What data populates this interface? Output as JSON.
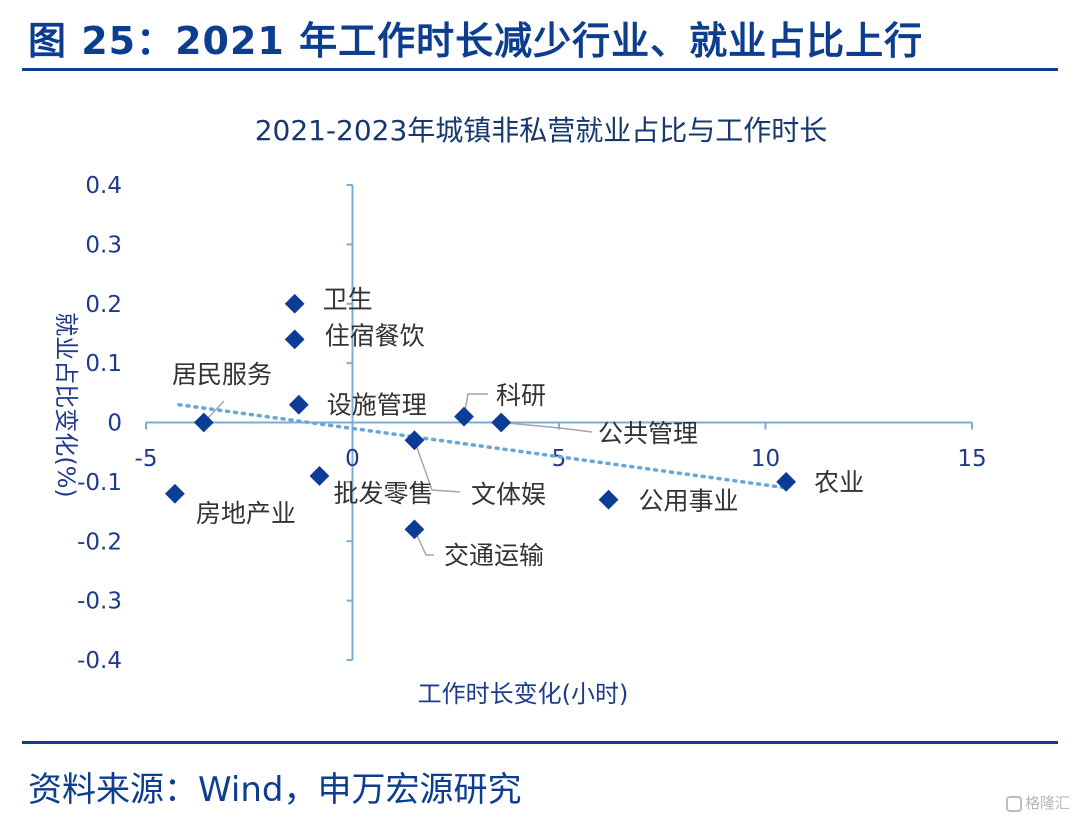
{
  "figure_title": "图 25：2021 年工作时长减少行业、就业占比上行",
  "source_note": "资料来源：Wind，申万宏源研究",
  "watermark": "格隆汇",
  "chart_data": {
    "type": "scatter",
    "title": "2021-2023年城镇非私营就业占比与工作时长",
    "xlabel": "工作时长变化(小时)",
    "ylabel": "就业占比变化(%)",
    "xlim": [
      -5,
      15
    ],
    "ylim": [
      -0.4,
      0.4
    ],
    "x_ticks": [
      "-5",
      "0",
      "5",
      "10",
      "15"
    ],
    "y_ticks": [
      "0.4",
      "0.3",
      "0.2",
      "0.1",
      "0",
      "-0.1",
      "-0.2",
      "-0.3",
      "-0.4"
    ],
    "grid": false,
    "trendline": {
      "style": "dotted",
      "color": "#6aa7d6",
      "x": [
        -4.2,
        10.5
      ],
      "y": [
        0.03,
        -0.11
      ]
    },
    "marker_color": "#0d3c96",
    "axis_color": "#7aaed6",
    "points": [
      {
        "name": "卫生",
        "x": -1.4,
        "y": 0.2
      },
      {
        "name": "住宿餐饮",
        "x": -1.4,
        "y": 0.14
      },
      {
        "name": "居民服务",
        "x": -3.6,
        "y": 0.0
      },
      {
        "name": "设施管理",
        "x": -1.3,
        "y": 0.03
      },
      {
        "name": "科研",
        "x": 2.7,
        "y": 0.01
      },
      {
        "name": "公共管理",
        "x": 3.6,
        "y": 0.0
      },
      {
        "name": "文体娱",
        "x": 1.5,
        "y": -0.03
      },
      {
        "name": "批发零售",
        "x": -0.8,
        "y": -0.09
      },
      {
        "name": "房地产业",
        "x": -4.3,
        "y": -0.12
      },
      {
        "name": "交通运输",
        "x": 1.5,
        "y": -0.18
      },
      {
        "name": "公用事业",
        "x": 6.2,
        "y": -0.13
      },
      {
        "name": "农业",
        "x": 10.5,
        "y": -0.1
      }
    ]
  }
}
